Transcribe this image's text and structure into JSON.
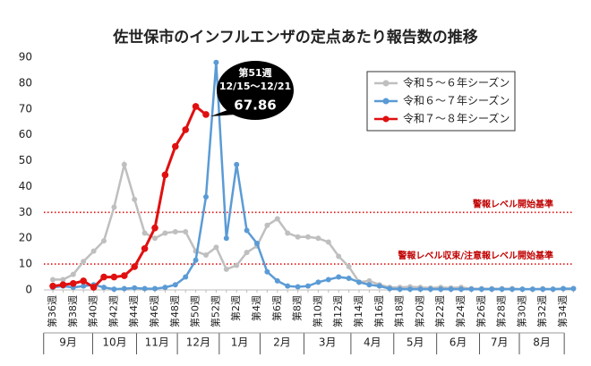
{
  "chart_data": {
    "type": "line",
    "title": "佐世保市のインフルエンザの定点あたり報告数の推移",
    "categories": [
      "第36週",
      null,
      "第38週",
      null,
      "第40週",
      null,
      "第42週",
      null,
      "第44週",
      null,
      "第46週",
      null,
      "第48週",
      null,
      "第50週",
      null,
      "第52週",
      null,
      "第2週",
      null,
      "第4週",
      null,
      "第6週",
      null,
      "第8週",
      null,
      "第10週",
      null,
      "第12週",
      null,
      "第14週",
      null,
      "第16週",
      null,
      "第18週",
      null,
      "第20週",
      null,
      "第22週",
      null,
      "第24週",
      null,
      "第26週",
      null,
      "第28週",
      null,
      "第30週",
      null,
      "第32週",
      null,
      "第34週",
      null
    ],
    "months": [
      "9月",
      "10月",
      "11月",
      "12月",
      "1月",
      "2月",
      "3月",
      "4月",
      "5月",
      "6月",
      "7月",
      "8月"
    ],
    "series": [
      {
        "name": "令和５～６年シーズン",
        "color": "#bfbfbf",
        "values": [
          4,
          4,
          6,
          11,
          15,
          19,
          32,
          48.5,
          35,
          22,
          20,
          22,
          22.5,
          22.5,
          15,
          13.5,
          16.5,
          8,
          9.5,
          14.5,
          17,
          25,
          27.5,
          22,
          20.5,
          20.5,
          20,
          18.5,
          13,
          9,
          3,
          3.5,
          2,
          1,
          1,
          1.2,
          1,
          0.8,
          1,
          0.8,
          1,
          0.5,
          0.5,
          0.5,
          0.5,
          0.5,
          0.3,
          0.3,
          0.5,
          0.3,
          0.5,
          0.5
        ]
      },
      {
        "name": "令和６～７年シーズン",
        "color": "#5b9bd5",
        "values": [
          1,
          1.5,
          1,
          1.5,
          2,
          1,
          0.3,
          0.5,
          0.8,
          0.5,
          0.5,
          1,
          2,
          5,
          11.5,
          36,
          88,
          20,
          48.5,
          23,
          18,
          7,
          3.5,
          1.5,
          1.2,
          1.5,
          3,
          4,
          5,
          4.5,
          3,
          2,
          1.5,
          0.5,
          0.3,
          0.3,
          0.3,
          0.3,
          0.3,
          0.3,
          0.3,
          0.3,
          0.3,
          0.3,
          0.3,
          0.3,
          0.3,
          0.3,
          0.3,
          0.3,
          0.5,
          0.5
        ]
      },
      {
        "name": "令和７～８年シーズン",
        "color": "#e01010",
        "values": [
          1.5,
          2,
          2.5,
          3.5,
          1,
          5,
          5,
          5.5,
          9,
          16,
          24,
          44.5,
          55.5,
          62,
          71,
          67.86,
          null,
          null,
          null,
          null,
          null,
          null,
          null,
          null,
          null,
          null,
          null,
          null,
          null,
          null,
          null,
          null,
          null,
          null,
          null,
          null,
          null,
          null,
          null,
          null,
          null,
          null,
          null,
          null,
          null,
          null,
          null,
          null,
          null,
          null,
          null,
          null
        ]
      }
    ],
    "annotation": [
      "第51週",
      "12/15～12/21"
    ],
    "reference_lines": [
      {
        "value": 30,
        "label": "警報レベル開始基準",
        "color": "#e01010"
      },
      {
        "value": 10,
        "label": "警報レベル収束/注意報レベル開始基準",
        "color": "#e01010"
      }
    ],
    "ylim": [
      0,
      90
    ],
    "yticks": [
      0,
      10,
      20,
      30,
      40,
      50,
      60,
      70,
      80,
      90
    ],
    "grid": false,
    "legend": "upper right"
  }
}
